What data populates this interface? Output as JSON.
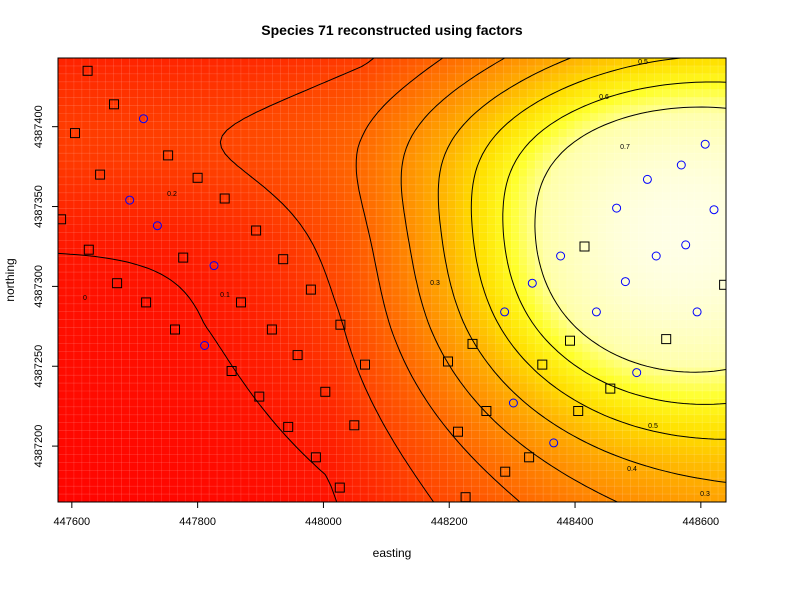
{
  "chart_data": {
    "type": "heatmap",
    "title": "Species 71 reconstructed using factors",
    "xlabel": "easting",
    "ylabel": "northing",
    "xlim": [
      447578,
      448640
    ],
    "ylim": [
      4387165,
      4387443
    ],
    "xticks": [
      447600,
      447800,
      448000,
      448200,
      448400,
      448600
    ],
    "yticks": [
      4387200,
      4387250,
      4387300,
      4387350,
      4387400
    ],
    "grid": true,
    "color_scale": [
      "#ff0000",
      "#ff6600",
      "#ffcc00",
      "#ffff00",
      "#ffffe0"
    ],
    "contour_levels": [
      0,
      0.1,
      0.2,
      0.3,
      0.4,
      0.5,
      0.6,
      0.7
    ],
    "contour_label_texts": [
      "0",
      "0.1",
      "0.2",
      "0.3",
      "0.4",
      "0.5",
      "0.6",
      "0.7",
      "0.5",
      "0.3"
    ],
    "surface_peak": {
      "x": 448530,
      "y": 4387322
    },
    "sites_absent": [
      {
        "x": 447625,
        "y": 4387435
      },
      {
        "x": 447667,
        "y": 4387414
      },
      {
        "x": 447605,
        "y": 4387396
      },
      {
        "x": 447645,
        "y": 4387370
      },
      {
        "x": 447753,
        "y": 4387382
      },
      {
        "x": 447800,
        "y": 4387368
      },
      {
        "x": 447843,
        "y": 4387355
      },
      {
        "x": 447583,
        "y": 4387342
      },
      {
        "x": 447627,
        "y": 4387323
      },
      {
        "x": 447893,
        "y": 4387335
      },
      {
        "x": 447777,
        "y": 4387318
      },
      {
        "x": 447936,
        "y": 4387317
      },
      {
        "x": 447672,
        "y": 4387302
      },
      {
        "x": 447980,
        "y": 4387298
      },
      {
        "x": 447718,
        "y": 4387290
      },
      {
        "x": 447869,
        "y": 4387290
      },
      {
        "x": 447764,
        "y": 4387273
      },
      {
        "x": 447918,
        "y": 4387273
      },
      {
        "x": 448027,
        "y": 4387276
      },
      {
        "x": 447959,
        "y": 4387257
      },
      {
        "x": 448066,
        "y": 4387251
      },
      {
        "x": 447854,
        "y": 4387247
      },
      {
        "x": 448003,
        "y": 4387234
      },
      {
        "x": 447898,
        "y": 4387231
      },
      {
        "x": 448049,
        "y": 4387213
      },
      {
        "x": 447944,
        "y": 4387212
      },
      {
        "x": 447988,
        "y": 4387193
      },
      {
        "x": 448026,
        "y": 4387174
      },
      {
        "x": 448198,
        "y": 4387253
      },
      {
        "x": 448237,
        "y": 4387264
      },
      {
        "x": 448214,
        "y": 4387209
      },
      {
        "x": 448259,
        "y": 4387222
      },
      {
        "x": 448226,
        "y": 4387168
      },
      {
        "x": 448289,
        "y": 4387184
      },
      {
        "x": 448327,
        "y": 4387193
      },
      {
        "x": 448348,
        "y": 4387251
      },
      {
        "x": 448392,
        "y": 4387266
      },
      {
        "x": 448405,
        "y": 4387222
      },
      {
        "x": 448456,
        "y": 4387236
      },
      {
        "x": 448415,
        "y": 4387325
      },
      {
        "x": 448545,
        "y": 4387267
      },
      {
        "x": 448637,
        "y": 4387301
      }
    ],
    "sites_present": [
      {
        "x": 447714,
        "y": 4387405
      },
      {
        "x": 447692,
        "y": 4387354
      },
      {
        "x": 447736,
        "y": 4387338
      },
      {
        "x": 447826,
        "y": 4387313
      },
      {
        "x": 447811,
        "y": 4387263
      },
      {
        "x": 448288,
        "y": 4387284
      },
      {
        "x": 448302,
        "y": 4387227
      },
      {
        "x": 448332,
        "y": 4387302
      },
      {
        "x": 448366,
        "y": 4387202
      },
      {
        "x": 448377,
        "y": 4387319
      },
      {
        "x": 448434,
        "y": 4387284
      },
      {
        "x": 448466,
        "y": 4387349
      },
      {
        "x": 448480,
        "y": 4387303
      },
      {
        "x": 448498,
        "y": 4387246
      },
      {
        "x": 448515,
        "y": 4387367
      },
      {
        "x": 448529,
        "y": 4387319
      },
      {
        "x": 448569,
        "y": 4387376
      },
      {
        "x": 448576,
        "y": 4387326
      },
      {
        "x": 448594,
        "y": 4387284
      },
      {
        "x": 448607,
        "y": 4387389
      },
      {
        "x": 448621,
        "y": 4387348
      }
    ]
  }
}
